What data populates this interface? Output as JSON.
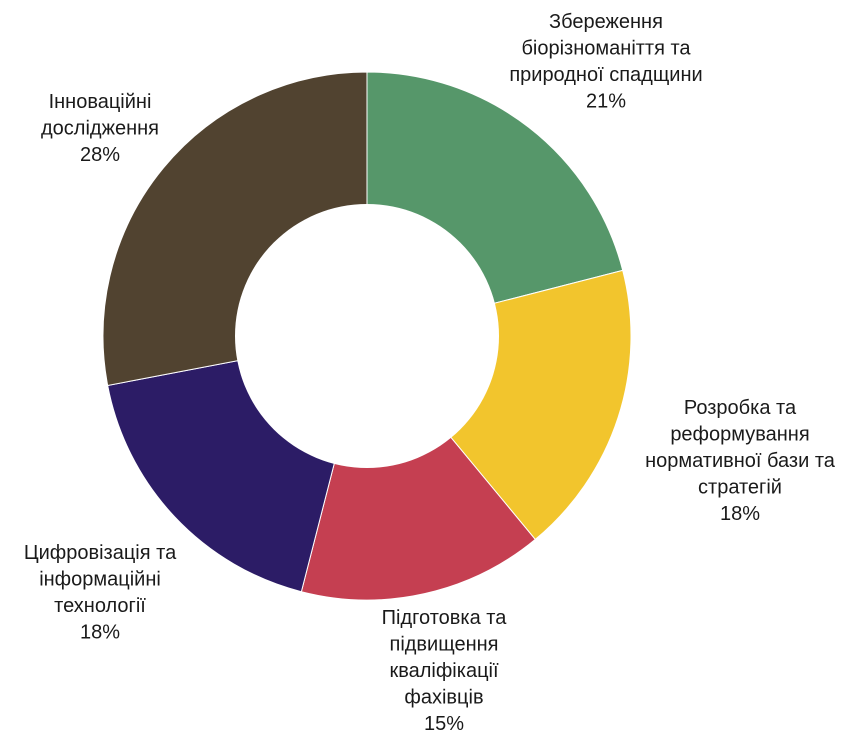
{
  "chart_data": {
    "type": "pie",
    "donut": true,
    "legend": "none",
    "slices": [
      {
        "label_lines": [
          "Збереження",
          "біорізноманіття та",
          "природної спадщини"
        ],
        "percent_label": "21%",
        "value": 21,
        "color": "#56976a"
      },
      {
        "label_lines": [
          "Розробка та",
          "реформування",
          "нормативної бази та",
          "стратегій"
        ],
        "percent_label": "18%",
        "value": 18,
        "color": "#f2c52d"
      },
      {
        "label_lines": [
          "Підготовка та",
          "підвищення",
          "кваліфікації",
          "фахівців"
        ],
        "percent_label": "15%",
        "value": 15,
        "color": "#c53f51"
      },
      {
        "label_lines": [
          "Цифровізація та",
          "інформаційні",
          "технології"
        ],
        "percent_label": "18%",
        "value": 18,
        "color": "#2c1c66"
      },
      {
        "label_lines": [
          "Інноваційні",
          "дослідження"
        ],
        "percent_label": "28%",
        "value": 28,
        "color": "#514330"
      }
    ]
  }
}
